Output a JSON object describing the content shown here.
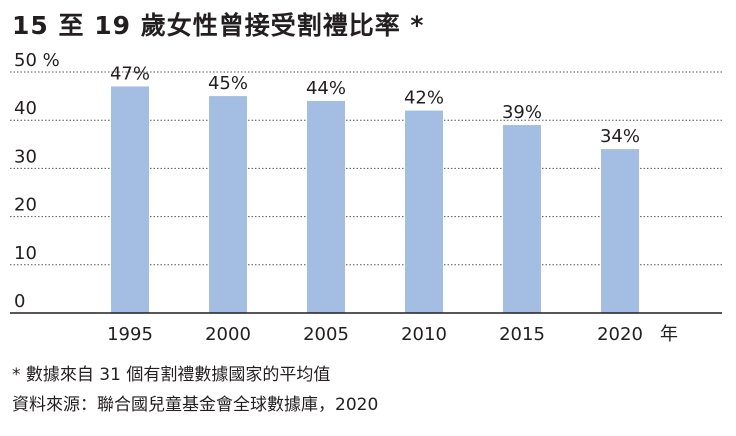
{
  "title": "15 至 19 歲女性曾接受割禮比率 *",
  "chart_data": {
    "type": "bar",
    "title": "15 至 19 歲女性曾接受割禮比率 *",
    "categories": [
      "1995",
      "2000",
      "2005",
      "2010",
      "2015",
      "2020"
    ],
    "values": [
      47,
      45,
      44,
      42,
      39,
      34
    ],
    "data_labels": [
      "47%",
      "45%",
      "44%",
      "42%",
      "39%",
      "34%"
    ],
    "yticks": [
      "50 %",
      "40",
      "30",
      "20",
      "10",
      "0"
    ],
    "ylim": [
      0,
      50
    ],
    "xlabel": "年",
    "ylabel": "",
    "grid": true,
    "bar_color": "#a3bde3"
  },
  "footnotes": [
    "* 數據來自 31 個有割禮數據國家的平均值",
    "資料來源：聯合國兒童基金會全球數據庫，2020"
  ]
}
